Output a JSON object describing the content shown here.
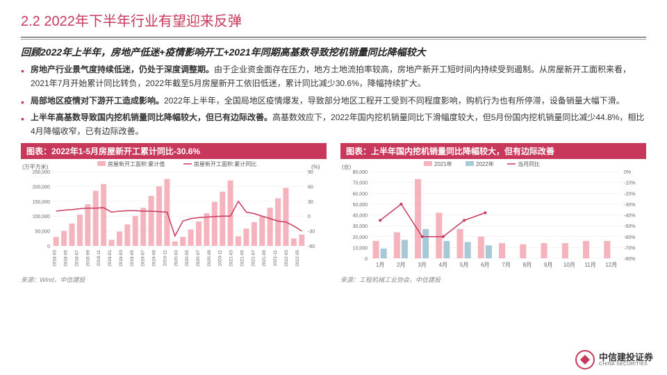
{
  "header": {
    "title": "2.2 2022年下半年行业有望迎来反弹"
  },
  "subtitle": "回顾2022年上半年，房地产低迷+疫情影响开工+2021年同期高基数导致挖机销量同比降幅较大",
  "bullets": [
    {
      "bold": "房地产行业景气度持续低迷，仍处于深度调整期。",
      "text": "由于企业资金面存在压力，地方土地流拍率较高，房地产新开工短时间内持续受到遏制。从房屋新开工面积来看，2021年7月开始累计同比转负，2022年截至5月房屋新开工依旧低迷，累计同比减少30.6%，降幅持续扩大。"
    },
    {
      "bold": "局部地区疫情对下游开工造成影响。",
      "text": "2022年上半年，全国局地区疫情爆发，导致部分地区工程开工受到不同程度影响，购机行为也有所停滞，设备销量大幅下滑。"
    },
    {
      "bold": "上半年高基数导致国内挖机销量同比降幅较大，但已有边际改善。",
      "text": "高基数效应下，2022年国内挖机销量同比下滑幅度较大，但5月份国内挖机销量同比减少44.8%，相比4月降幅收窄，已有边际改善。"
    }
  ],
  "chart_left": {
    "title": "图表：2022年1-5月房屋新开工累计同比-30.6%",
    "legend": [
      {
        "label": "房屋新开工面积:累计值",
        "color": "#f4b3bd",
        "type": "bar"
      },
      {
        "label": "房屋新开工面积:累计同比",
        "color": "#c8385a",
        "type": "line"
      }
    ],
    "y1_label": "(万平方米)",
    "y2_label": "(%)",
    "y1_ticks": [
      0,
      50000,
      100000,
      150000,
      200000,
      250000
    ],
    "y2_ticks": [
      -60,
      -30,
      0,
      30,
      60,
      90
    ],
    "x_labels": [
      "2018-03",
      "2018-05",
      "2018-07",
      "2018-09",
      "2018-11",
      "2019-01",
      "2019-03",
      "2019-05",
      "2019-07",
      "2019-09",
      "2019-11",
      "2020-03",
      "2020-05",
      "2020-07",
      "2020-09",
      "2020-11",
      "2021-03",
      "2021-05",
      "2021-07",
      "2021-09",
      "2021-11",
      "2022-03",
      "2022-05"
    ],
    "bars": [
      30000,
      50000,
      75000,
      105000,
      140000,
      185000,
      208000,
      20000,
      48000,
      72000,
      100000,
      128000,
      168000,
      200000,
      225000,
      15000,
      30000,
      55000,
      82000,
      110000,
      148000,
      182000,
      220000,
      32000,
      58000,
      80000,
      100000,
      128000,
      160000,
      195000,
      25000,
      38000
    ],
    "line": [
      10,
      12,
      13,
      15,
      16,
      16,
      17,
      8,
      10,
      11,
      11,
      10,
      10,
      9,
      8,
      -40,
      -10,
      -5,
      -3,
      -2,
      -1,
      0,
      0,
      30,
      8,
      5,
      0,
      -5,
      -10,
      -12,
      -20,
      -30
    ],
    "source": "来源：Wind，中信建投",
    "bar_color": "#f4b3bd",
    "line_color": "#c8385a",
    "grid_color": "#e8e8e8"
  },
  "chart_right": {
    "title": "图表：上半年国内挖机销量同比降幅较大，但有边际改善",
    "legend": [
      {
        "label": "2021年",
        "color": "#f4b3bd",
        "type": "bar"
      },
      {
        "label": "2022年",
        "color": "#a8c8d8",
        "type": "bar"
      },
      {
        "label": "当月同比",
        "color": "#c8385a",
        "type": "line"
      }
    ],
    "y1_label": "(台)",
    "y2_label": "",
    "y1_ticks": [
      0,
      10000,
      20000,
      30000,
      40000,
      50000,
      60000,
      70000,
      80000
    ],
    "y2_ticks": [
      "-80%",
      "-70%",
      "-60%",
      "-50%",
      "-40%",
      "-30%",
      "-20%",
      "-10%",
      "0%"
    ],
    "x_labels": [
      "1月",
      "2月",
      "3月",
      "4月",
      "5月",
      "6月",
      "7月",
      "8月",
      "9月",
      "10月",
      "11月",
      "12月"
    ],
    "bars_2021": [
      16000,
      24000,
      73000,
      42000,
      27000,
      20000,
      14000,
      13000,
      14000,
      14000,
      16000,
      16000
    ],
    "bars_2022": [
      9000,
      17000,
      27000,
      16000,
      15000,
      12000,
      0,
      0,
      0,
      0,
      0,
      0
    ],
    "line": [
      -45,
      -30,
      -60,
      -60,
      -45,
      -38
    ],
    "source": "来源：工程机械工业协会，中信建投",
    "bar1_color": "#f4b3bd",
    "bar2_color": "#a8c8d8",
    "line_color": "#c8385a",
    "grid_color": "#e8e8e8"
  },
  "footer": {
    "cn": "中信建投证券",
    "en": "CHINA SECURITIES"
  }
}
